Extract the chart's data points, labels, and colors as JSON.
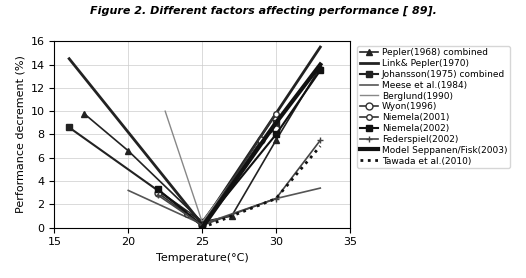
{
  "title": "Figure 2. Different factors affecting performance [ 89].",
  "xlabel": "Temperature(°C)",
  "ylabel": "Performance decrement (%)",
  "xlim": [
    15,
    35
  ],
  "ylim": [
    0,
    16
  ],
  "xticks": [
    15,
    20,
    25,
    30,
    35
  ],
  "yticks": [
    0,
    2,
    4,
    6,
    8,
    10,
    12,
    14,
    16
  ],
  "series": [
    {
      "label": "Pepler(1968) combined",
      "x": [
        17,
        20,
        25,
        27,
        30,
        33
      ],
      "y": [
        9.8,
        6.6,
        0.5,
        1.0,
        7.5,
        13.8
      ],
      "color": "#222222",
      "marker": "^",
      "markersize": 4,
      "linestyle": "-",
      "linewidth": 1.2
    },
    {
      "label": "Link& Pepler(1970)",
      "x": [
        16,
        25,
        33
      ],
      "y": [
        14.5,
        0.3,
        15.5
      ],
      "color": "#222222",
      "marker": "None",
      "markersize": 4,
      "linestyle": "-",
      "linewidth": 2.0
    },
    {
      "label": "Johansson(1975) combined",
      "x": [
        16,
        25,
        30
      ],
      "y": [
        8.6,
        0.5,
        9.0
      ],
      "color": "#222222",
      "marker": "s",
      "markersize": 4,
      "linestyle": "-",
      "linewidth": 1.5
    },
    {
      "label": "Meese et al.(1984)",
      "x": [
        20,
        25,
        30,
        33
      ],
      "y": [
        3.2,
        0.3,
        2.5,
        3.4
      ],
      "color": "#555555",
      "marker": "None",
      "markersize": 4,
      "linestyle": "-",
      "linewidth": 1.2
    },
    {
      "label": "Berglund(1990)",
      "x": [
        22.5,
        25,
        30
      ],
      "y": [
        10.0,
        0.5,
        9.2
      ],
      "color": "#888888",
      "marker": "None",
      "markersize": 4,
      "linestyle": "-",
      "linewidth": 1.0
    },
    {
      "label": "Wyon(1996)",
      "x": [
        22,
        25,
        29,
        30
      ],
      "y": [
        3.0,
        0.2,
        7.5,
        8.5
      ],
      "color": "#333333",
      "marker": "o",
      "markersize": 5,
      "linestyle": "-",
      "linewidth": 1.2,
      "markerfacecolor": "white"
    },
    {
      "label": "Niemela(2001)",
      "x": [
        24,
        25,
        30
      ],
      "y": [
        1.2,
        0.1,
        9.8
      ],
      "color": "#333333",
      "marker": "o",
      "markersize": 4,
      "linestyle": "-",
      "linewidth": 1.2,
      "markerfacecolor": "white"
    },
    {
      "label": "Niemela(2002)",
      "x": [
        22,
        25,
        30,
        33
      ],
      "y": [
        3.3,
        0.2,
        8.0,
        13.5
      ],
      "color": "#111111",
      "marker": "s",
      "markersize": 4,
      "linestyle": "-",
      "linewidth": 1.5
    },
    {
      "label": "Federspiel(2002)",
      "x": [
        22,
        25,
        30,
        33
      ],
      "y": [
        2.8,
        0.2,
        2.5,
        7.5
      ],
      "color": "#444444",
      "marker": "+",
      "markersize": 5,
      "linestyle": "-",
      "linewidth": 1.2
    },
    {
      "label": "Model Seppanen/Fisk(2003)",
      "x": [
        25,
        30,
        33
      ],
      "y": [
        0.0,
        9.0,
        14.0
      ],
      "color": "#111111",
      "marker": "None",
      "markersize": 4,
      "linestyle": "-",
      "linewidth": 3.0
    },
    {
      "label": "Tawada et al.(2010)",
      "x": [
        25,
        30,
        33
      ],
      "y": [
        0.0,
        2.5,
        7.0
      ],
      "color": "#111111",
      "marker": "None",
      "markersize": 4,
      "linestyle": ":",
      "linewidth": 2.0
    }
  ],
  "background_color": "#ffffff",
  "legend_fontsize": 6.5,
  "axis_fontsize": 8,
  "title_fontsize": 8
}
